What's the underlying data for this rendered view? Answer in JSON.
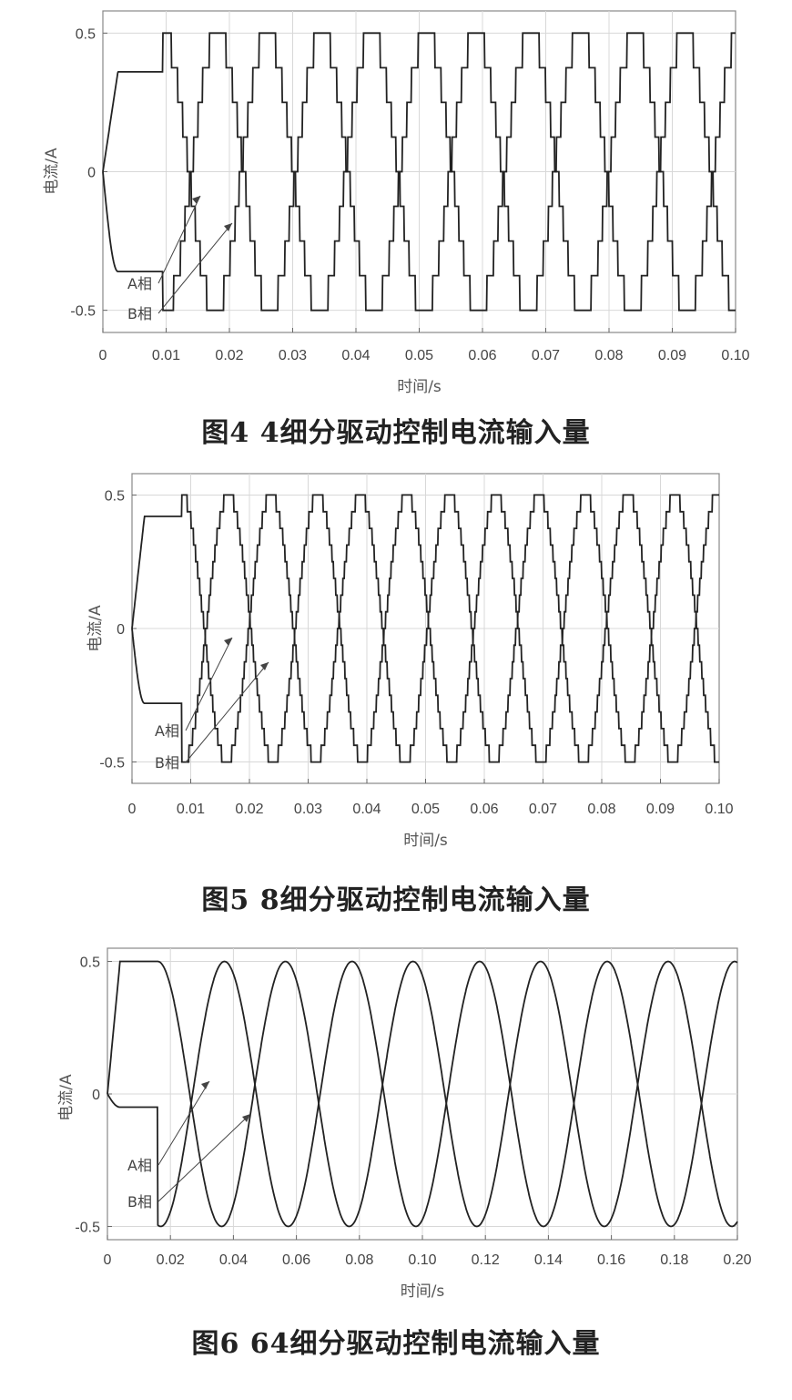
{
  "chart_data": [
    {
      "type": "line",
      "caption": "图4   4细分驱动控制电流输入量",
      "xlabel": "时间/s",
      "ylabel": "电流/A",
      "xlim": [
        0,
        0.1
      ],
      "ylim": [
        -0.58,
        0.58
      ],
      "xticks": [
        "0",
        "0.01",
        "0.02",
        "0.03",
        "0.04",
        "0.05",
        "0.06",
        "0.07",
        "0.08",
        "0.09",
        "0.10"
      ],
      "yticks": [
        "0.5",
        "0",
        "-0.5"
      ],
      "grid": true,
      "microsteps": 4,
      "period_s": 0.0165,
      "amplitude": 0.5,
      "startup": {
        "a_hold": 0.36,
        "b_hold": -0.36,
        "end_s": 0.0095
      },
      "series": [
        {
          "name": "A相",
          "label_text": "A相"
        },
        {
          "name": "B相",
          "label_text": "B相"
        }
      ]
    },
    {
      "type": "line",
      "caption": "图5   8细分驱动控制电流输入量",
      "xlabel": "时间/s",
      "ylabel": "电流/A",
      "xlim": [
        0,
        0.1
      ],
      "ylim": [
        -0.58,
        0.58
      ],
      "xticks": [
        "0",
        "0.01",
        "0.02",
        "0.03",
        "0.04",
        "0.05",
        "0.06",
        "0.07",
        "0.08",
        "0.09",
        "0.10"
      ],
      "yticks": [
        "0.5",
        "0",
        "-0.5"
      ],
      "grid": true,
      "microsteps": 8,
      "period_s": 0.0152,
      "amplitude": 0.5,
      "startup": {
        "a_hold": 0.42,
        "b_hold": -0.28,
        "end_s": 0.0085
      },
      "series": [
        {
          "name": "A相",
          "label_text": "A相"
        },
        {
          "name": "B相",
          "label_text": "B相"
        }
      ]
    },
    {
      "type": "line",
      "caption": "图6   64细分驱动控制电流输入量",
      "xlabel": "时间/s",
      "ylabel": "电流/A",
      "xlim": [
        0,
        0.2
      ],
      "ylim": [
        -0.55,
        0.55
      ],
      "xticks": [
        "0",
        "0.02",
        "0.04",
        "0.06",
        "0.08",
        "0.10",
        "0.12",
        "0.14",
        "0.16",
        "0.18",
        "0.20"
      ],
      "yticks": [
        "0.5",
        "0",
        "-0.5"
      ],
      "grid": true,
      "microsteps": 64,
      "period_s": 0.0405,
      "amplitude": 0.5,
      "startup": {
        "a_hold": 0.5,
        "b_hold": -0.05,
        "end_s": 0.016
      },
      "series": [
        {
          "name": "A相",
          "label_text": "A相"
        },
        {
          "name": "B相",
          "label_text": "B相"
        }
      ]
    }
  ]
}
